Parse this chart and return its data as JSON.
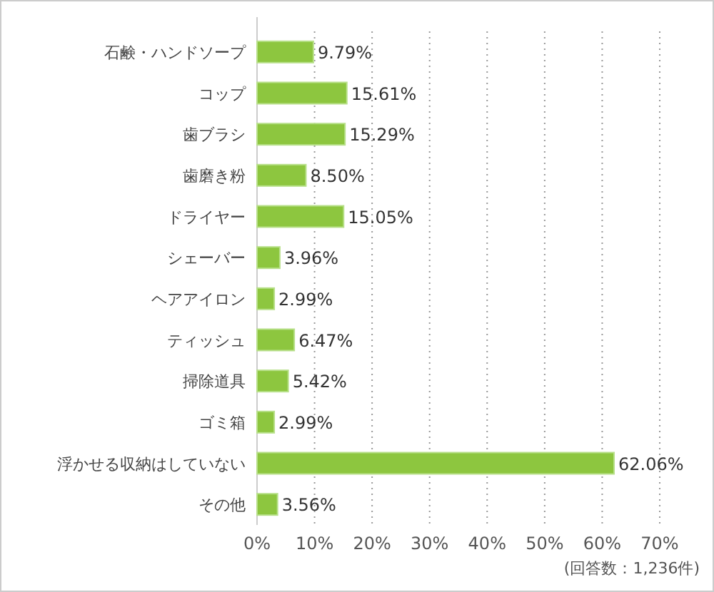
{
  "chart_data": {
    "type": "bar",
    "orientation": "horizontal",
    "categories": [
      "石鹸・ハンドソープ",
      "コップ",
      "歯ブラシ",
      "歯磨き粉",
      "ドライヤー",
      "シェーバー",
      "ヘアアイロン",
      "ティッシュ",
      "掃除道具",
      "ゴミ箱",
      "浮かせる収納はしていない",
      "その他"
    ],
    "values": [
      9.79,
      15.61,
      15.29,
      8.5,
      15.05,
      3.96,
      2.99,
      6.47,
      5.42,
      2.99,
      62.06,
      3.56
    ],
    "value_labels": [
      "9.79%",
      "15.61%",
      "15.29%",
      "8.50%",
      "15.05%",
      "3.96%",
      "2.99%",
      "6.47%",
      "5.42%",
      "2.99%",
      "62.06%",
      "3.56%"
    ],
    "color": "#8dc63f",
    "xlim": [
      0,
      70
    ],
    "xticks": [
      {
        "value": 0,
        "label": "0%"
      },
      {
        "value": 10,
        "label": "10%"
      },
      {
        "value": 20,
        "label": "20%"
      },
      {
        "value": 30,
        "label": "30%"
      },
      {
        "value": 40,
        "label": "40%"
      },
      {
        "value": 50,
        "label": "50%"
      },
      {
        "value": 60,
        "label": "60%"
      },
      {
        "value": 70,
        "label": "70%"
      }
    ],
    "grid": "x",
    "annotations": [
      "(回答数：1,236件)"
    ]
  }
}
